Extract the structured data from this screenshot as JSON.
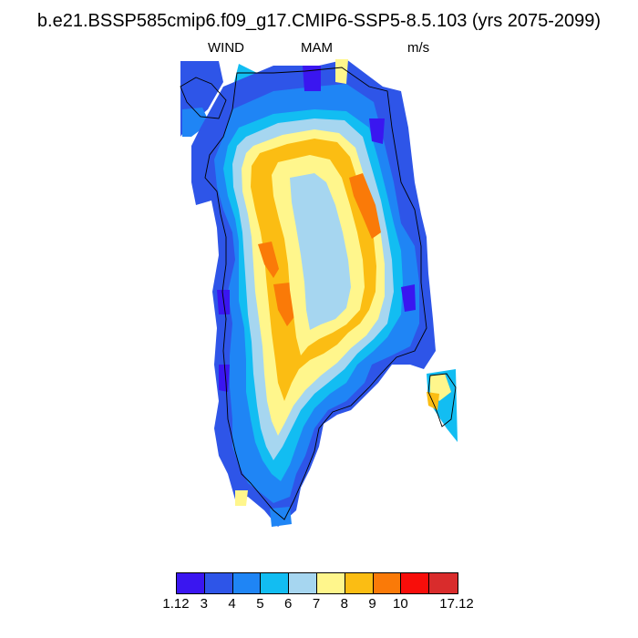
{
  "title": "b.e21.BSSP585cmip6.f09_g17.CMIP6-SSP5-8.5.103 (yrs 2075-2099)",
  "subtitle": {
    "variable": "WIND",
    "season": "MAM",
    "units": "m/s"
  },
  "colorbar": {
    "colors": [
      "#3a16f0",
      "#2e55e8",
      "#1f85f5",
      "#12bdf2",
      "#a6d6f0",
      "#fff68c",
      "#fbbd13",
      "#fa7a08",
      "#f80e0a",
      "#d92c2c"
    ],
    "labels": [
      "1.12",
      "3",
      "4",
      "5",
      "6",
      "7",
      "8",
      "9",
      "10",
      "17.12"
    ]
  },
  "map": {
    "region": "Greenland",
    "field": "near-surface wind speed",
    "pattern": "strongest winds (8-10 m/s) along the slopes of the ice sheet, weaker interior plateau (6-7 m/s), weakest at the coast (1-5 m/s)"
  }
}
